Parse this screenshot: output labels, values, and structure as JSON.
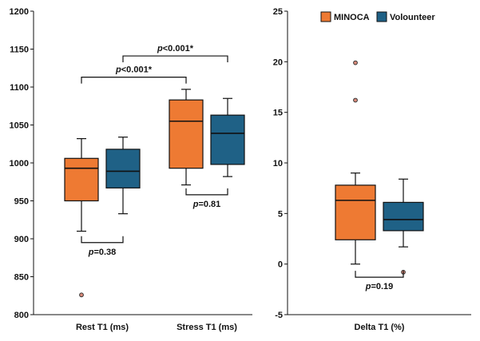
{
  "colors": {
    "minoca": "#EE7A33",
    "volunteer": "#1F6186",
    "outlier": "#D98A7A",
    "line": "#111111"
  },
  "legend": {
    "position": "top-right",
    "entries": [
      "MINOCA",
      "Volounteer"
    ]
  },
  "chart_data": [
    {
      "type": "box",
      "series": [
        {
          "name": "MINOCA",
          "color": "#EE7A33"
        },
        {
          "name": "Volounteer",
          "color": "#1F6186"
        }
      ],
      "categories": [
        "Rest T1 (ms)",
        "Stress T1 (ms)"
      ],
      "ylim": [
        800,
        1200
      ],
      "yticks": [
        "800",
        "850",
        "900",
        "950",
        "1000",
        "1050",
        "1100",
        "1150",
        "1200"
      ],
      "grid": false,
      "boxes": [
        {
          "category": "Rest T1 (ms)",
          "series": "MINOCA",
          "whisker_low": 910,
          "q1": 950,
          "median": 993,
          "q3": 1006,
          "whisker_high": 1032,
          "outliers": [
            826
          ]
        },
        {
          "category": "Rest T1 (ms)",
          "series": "Volounteer",
          "whisker_low": 933,
          "q1": 967,
          "median": 989,
          "q3": 1018,
          "whisker_high": 1034,
          "outliers": []
        },
        {
          "category": "Stress T1 (ms)",
          "series": "MINOCA",
          "whisker_low": 971,
          "q1": 993,
          "median": 1055,
          "q3": 1083,
          "whisker_high": 1097,
          "outliers": []
        },
        {
          "category": "Stress T1 (ms)",
          "series": "Volounteer",
          "whisker_low": 982,
          "q1": 998,
          "median": 1039,
          "q3": 1063,
          "whisker_high": 1085,
          "outliers": []
        }
      ],
      "annotations": [
        {
          "p_label": "p",
          "p_value": "=0.38",
          "from": "Rest T1 (ms):MINOCA",
          "to": "Rest T1 (ms):Volounteer",
          "side": "below",
          "y": 895
        },
        {
          "p_label": "p",
          "p_value": "=0.81",
          "from": "Stress T1 (ms):MINOCA",
          "to": "Stress T1 (ms):Volounteer",
          "side": "below",
          "y": 958
        },
        {
          "p_label": "p",
          "p_value": "<0.001*",
          "from": "Rest T1 (ms):MINOCA",
          "to": "Stress T1 (ms):MINOCA",
          "side": "above",
          "y": 1113
        },
        {
          "p_label": "p",
          "p_value": "<0.001*",
          "from": "Rest T1 (ms):Volounteer",
          "to": "Stress T1 (ms):Volounteer",
          "side": "above",
          "y": 1141
        }
      ]
    },
    {
      "type": "box",
      "series": [
        {
          "name": "MINOCA",
          "color": "#EE7A33"
        },
        {
          "name": "Volounteer",
          "color": "#1F6186"
        }
      ],
      "categories": [
        "Delta T1 (%)"
      ],
      "ylim": [
        -5,
        25
      ],
      "yticks": [
        "-5",
        "0",
        "5",
        "10",
        "15",
        "20",
        "25"
      ],
      "grid": false,
      "boxes": [
        {
          "category": "Delta T1 (%)",
          "series": "MINOCA",
          "whisker_low": 0,
          "q1": 2.4,
          "median": 6.3,
          "q3": 7.8,
          "whisker_high": 9.0,
          "outliers": [
            16.2,
            19.9
          ]
        },
        {
          "category": "Delta T1 (%)",
          "series": "Volounteer",
          "whisker_low": 1.7,
          "q1": 3.3,
          "median": 4.4,
          "q3": 6.1,
          "whisker_high": 8.4,
          "outliers": [
            -0.8
          ]
        }
      ],
      "annotations": [
        {
          "p_label": "p",
          "p_value": "=0.19",
          "from": "Delta T1 (%):MINOCA",
          "to": "Delta T1 (%):Volounteer",
          "side": "below",
          "y": -1.3
        }
      ]
    }
  ]
}
